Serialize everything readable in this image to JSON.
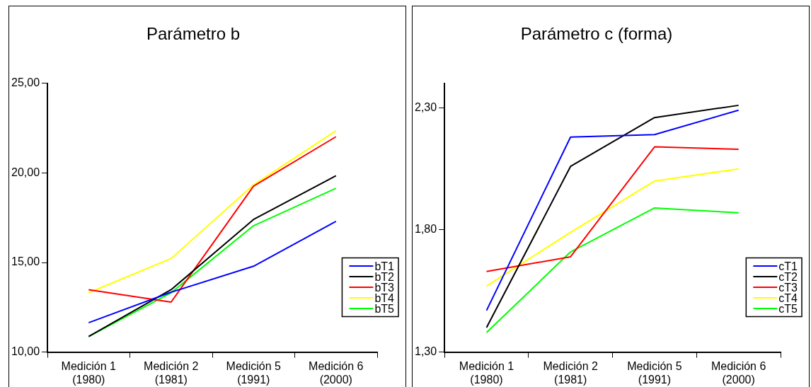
{
  "chart_data": [
    {
      "type": "line",
      "title": "Parámetro b",
      "categories": [
        "Medición 1\n(1980)",
        "Medición 2\n(1981)",
        "Medición 5\n(1991)",
        "Medición 6\n(2000)"
      ],
      "series": [
        {
          "name": "bT1",
          "color": "#0000ff",
          "values": [
            11.64,
            13.34,
            14.79,
            17.3
          ]
        },
        {
          "name": "bT2",
          "color": "#000000",
          "values": [
            10.87,
            13.48,
            17.4,
            19.84
          ]
        },
        {
          "name": "bT3",
          "color": "#ff0000",
          "values": [
            13.48,
            12.79,
            19.26,
            22.02
          ]
        },
        {
          "name": "bT4",
          "color": "#ffff00",
          "values": [
            13.31,
            15.22,
            19.33,
            22.35
          ]
        },
        {
          "name": "bT5",
          "color": "#00ff00",
          "values": [
            10.87,
            13.31,
            17.05,
            19.14
          ]
        }
      ],
      "ylim": [
        10,
        25
      ],
      "yticks": [
        {
          "value": 10,
          "label": "10,00"
        },
        {
          "value": 15,
          "label": "15,00"
        },
        {
          "value": 20,
          "label": "20,00"
        },
        {
          "value": 25,
          "label": "25,00"
        }
      ],
      "grid": false,
      "legend": "bottom right",
      "marker": "none"
    },
    {
      "type": "line",
      "title": "Parámetro c (forma)",
      "categories": [
        "Medición 1\n(1980)",
        "Medición 2\n(1981)",
        "Medición 5\n(1991)",
        "Medición 6\n(2000)"
      ],
      "series": [
        {
          "name": "cT1",
          "color": "#0000ff",
          "values": [
            1.47,
            2.18,
            2.19,
            2.29
          ]
        },
        {
          "name": "cT2",
          "color": "#000000",
          "values": [
            1.4,
            2.06,
            2.26,
            2.31
          ]
        },
        {
          "name": "cT3",
          "color": "#ff0000",
          "values": [
            1.63,
            1.69,
            2.14,
            2.13
          ]
        },
        {
          "name": "cT4",
          "color": "#ffff00",
          "values": [
            1.57,
            1.79,
            2.0,
            2.05
          ]
        },
        {
          "name": "cT5",
          "color": "#00ff00",
          "values": [
            1.38,
            1.71,
            1.89,
            1.87
          ]
        }
      ],
      "ylim": [
        1.3,
        2.4
      ],
      "yticks": [
        {
          "value": 1.3,
          "label": "1,30"
        },
        {
          "value": 1.8,
          "label": "1,80"
        },
        {
          "value": 2.3,
          "label": "2,30"
        }
      ],
      "grid": false,
      "legend": "bottom right",
      "marker": "none"
    }
  ]
}
